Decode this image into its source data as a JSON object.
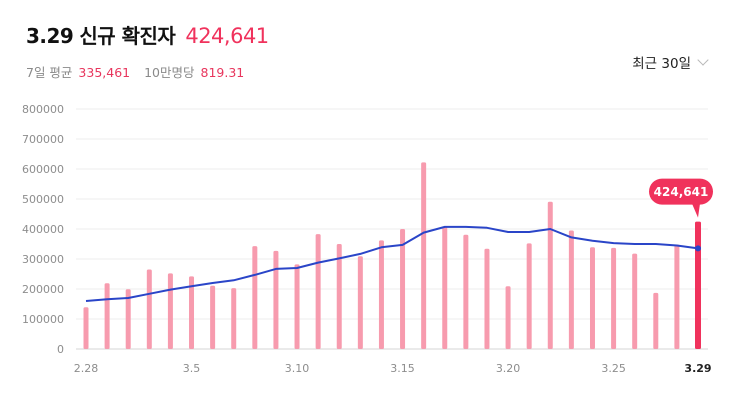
{
  "header": {
    "date": "3.29",
    "title": "신규 확진자",
    "total": "424,641",
    "avg_label": "7일 평균",
    "avg_value": "335,461",
    "per_label": "10만명당",
    "per_value": "819.31"
  },
  "range_selector": {
    "label": "최근 30일"
  },
  "colors": {
    "bar": "#f79bae",
    "bar_highlight": "#f0325c",
    "line": "#2a45c8",
    "tooltip": "#f0325c"
  },
  "chart_data": {
    "type": "bar",
    "title": "",
    "xlabel": "",
    "ylabel": "",
    "ylim": [
      0,
      800000
    ],
    "y_ticks": [
      0,
      100000,
      200000,
      300000,
      400000,
      500000,
      600000,
      700000,
      800000
    ],
    "grid": true,
    "categories": [
      "2.28",
      "3.1",
      "3.2",
      "3.3",
      "3.4",
      "3.5",
      "3.6",
      "3.7",
      "3.8",
      "3.9",
      "3.10",
      "3.11",
      "3.12",
      "3.13",
      "3.14",
      "3.15",
      "3.16",
      "3.17",
      "3.18",
      "3.19",
      "3.20",
      "3.21",
      "3.22",
      "3.23",
      "3.24",
      "3.25",
      "3.26",
      "3.27",
      "3.28",
      "3.29"
    ],
    "x_tick_labels": [
      "2.28",
      "3.5",
      "3.10",
      "3.15",
      "3.20",
      "3.25",
      "3.29"
    ],
    "series": [
      {
        "values": [
          139000,
          219000,
          199000,
          265000,
          252000,
          242000,
          211000,
          203000,
          343000,
          327000,
          282000,
          383000,
          350000,
          309000,
          362000,
          400000,
          622000,
          407000,
          381000,
          334000,
          209000,
          352000,
          491000,
          395000,
          339000,
          337000,
          318000,
          187000,
          348000,
          424641
        ]
      },
      {
        "values": [
          160000,
          166000,
          170000,
          184000,
          198000,
          209000,
          220000,
          229000,
          247000,
          267000,
          270000,
          288000,
          302000,
          317000,
          339000,
          347000,
          388000,
          407000,
          407000,
          404000,
          390000,
          390000,
          400000,
          372000,
          361000,
          353000,
          350000,
          350000,
          345000,
          335461
        ]
      }
    ],
    "highlight": {
      "category": "3.29",
      "label": "424,641"
    }
  }
}
